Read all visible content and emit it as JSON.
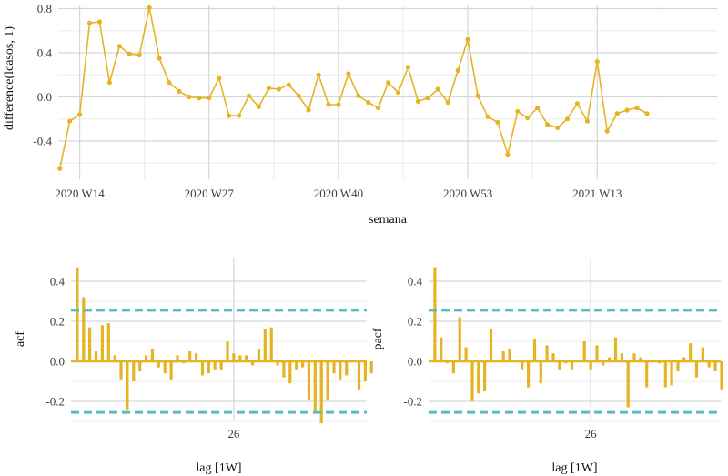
{
  "chart_data": [
    {
      "type": "line",
      "xlabel": "semana",
      "ylabel": "difference(lcasos, 1)",
      "x_ticks": [
        "2020 W14",
        "2020 W27",
        "2020 W40",
        "2020 W53",
        "2021 W13"
      ],
      "y_ticks": [
        "0.8",
        "0.4",
        "0.0",
        "-0.4"
      ],
      "ylim": [
        -0.7,
        0.82
      ],
      "start_week": 13,
      "color": "#E6B422",
      "grid": true,
      "values": [
        -0.65,
        -0.22,
        -0.16,
        0.67,
        0.68,
        0.13,
        0.46,
        0.39,
        0.38,
        0.81,
        0.35,
        0.13,
        0.05,
        0.0,
        -0.01,
        -0.01,
        0.17,
        -0.17,
        -0.17,
        0.01,
        -0.09,
        0.08,
        0.07,
        0.11,
        0.01,
        -0.12,
        0.2,
        -0.07,
        -0.07,
        0.21,
        0.01,
        -0.05,
        -0.1,
        0.13,
        0.04,
        0.27,
        -0.04,
        -0.01,
        0.07,
        -0.05,
        0.24,
        0.52,
        0.01,
        -0.18,
        -0.23,
        -0.52,
        -0.13,
        -0.19,
        -0.1,
        -0.25,
        -0.28,
        -0.2,
        -0.06,
        -0.22,
        0.32,
        -0.31,
        -0.15,
        -0.12,
        -0.1,
        -0.15
      ]
    },
    {
      "type": "bar",
      "xlabel": "lag [1W]",
      "ylabel": "acf",
      "x_ticks": [
        "26"
      ],
      "y_ticks": [
        "0.4",
        "0.2",
        "0.0",
        "-0.2"
      ],
      "ylim": [
        -0.33,
        0.5
      ],
      "xlim": [
        0,
        57
      ],
      "conf_limit": 0.255,
      "bar_color": "#E6B422",
      "ci_color": "#5BBCC4",
      "lags": [
        1,
        2,
        3,
        4,
        5,
        6,
        7,
        8,
        9,
        10,
        11,
        12,
        13,
        14,
        15,
        16,
        17,
        18,
        19,
        20,
        21,
        22,
        23,
        24,
        25,
        26,
        27,
        28,
        29,
        30,
        31,
        32,
        33,
        34,
        35,
        36,
        37,
        38,
        39,
        40,
        41,
        42,
        43,
        44,
        45,
        46,
        47,
        48,
        49,
        50,
        51,
        52,
        53,
        54
      ],
      "values": [
        0.47,
        0.32,
        0.17,
        0.05,
        0.18,
        0.19,
        0.03,
        -0.09,
        -0.24,
        -0.1,
        -0.05,
        0.03,
        0.06,
        -0.03,
        -0.06,
        -0.09,
        0.03,
        -0.01,
        0.05,
        0.04,
        -0.07,
        -0.06,
        -0.04,
        -0.04,
        0.1,
        0.04,
        0.03,
        0.03,
        -0.02,
        0.06,
        0.16,
        0.17,
        -0.02,
        -0.08,
        -0.11,
        -0.04,
        -0.03,
        -0.19,
        -0.26,
        -0.31,
        -0.19,
        -0.06,
        -0.09,
        -0.07,
        0.01,
        -0.14,
        -0.1,
        -0.06,
        0.0,
        0.0,
        0.0,
        0.0,
        0.0,
        0.0
      ]
    },
    {
      "type": "bar",
      "xlabel": "lag [1W]",
      "ylabel": "pacf",
      "x_ticks": [
        "26"
      ],
      "y_ticks": [
        "0.4",
        "0.2",
        "0.0",
        "-0.2"
      ],
      "ylim": [
        -0.33,
        0.5
      ],
      "xlim": [
        0,
        57
      ],
      "conf_limit": 0.255,
      "bar_color": "#E6B422",
      "ci_color": "#5BBCC4",
      "lags": [
        1,
        2,
        3,
        4,
        5,
        6,
        7,
        8,
        9,
        10,
        11,
        12,
        13,
        14,
        15,
        16,
        17,
        18,
        19,
        20,
        21,
        22,
        23,
        24,
        25,
        26,
        27,
        28,
        29,
        30,
        31,
        32,
        33,
        34,
        35,
        36,
        37,
        38,
        39,
        40,
        41,
        42,
        43,
        44,
        45,
        46,
        47,
        48,
        49,
        50,
        51,
        52,
        53,
        54
      ],
      "values": [
        0.47,
        0.12,
        -0.01,
        -0.06,
        0.22,
        0.07,
        -0.2,
        -0.16,
        -0.15,
        0.16,
        0.0,
        0.05,
        0.06,
        0.0,
        -0.04,
        -0.13,
        0.11,
        -0.11,
        0.08,
        0.04,
        -0.04,
        -0.01,
        -0.04,
        0.0,
        0.1,
        -0.04,
        0.08,
        -0.02,
        0.02,
        0.12,
        0.04,
        -0.23,
        0.04,
        0.02,
        -0.13,
        0.0,
        -0.01,
        -0.13,
        -0.12,
        -0.05,
        0.02,
        0.09,
        -0.08,
        0.07,
        -0.03,
        -0.05,
        -0.14,
        0.0,
        0.0,
        0.0,
        0.0,
        0.0,
        0.0,
        0.0
      ]
    }
  ]
}
